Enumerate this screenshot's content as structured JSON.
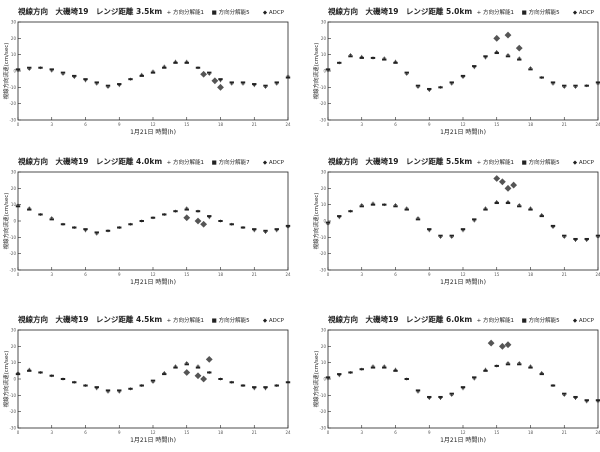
{
  "figure": {
    "background": "#ffffff",
    "ink": "#222222"
  },
  "chart_data": [
    {
      "type": "scatter",
      "title": "視線方向　大磯埼19　レンジ距離 3.5km",
      "xlabel": "1月21日 時間(h)",
      "ylabel": "視線方向流速(cm/sec)",
      "legend": [
        "方向分解能1",
        "方向分解能5",
        "ADCP"
      ],
      "legend_position": "top-right",
      "xlim": [
        0,
        24
      ],
      "ylim": [
        -30,
        30
      ],
      "grid": false,
      "series": [
        {
          "name": "方向分解能1",
          "x": [
            0,
            1,
            2,
            3,
            4,
            5,
            6,
            7,
            8,
            9,
            10,
            11,
            12,
            13,
            14,
            15,
            16,
            17,
            18,
            19,
            20,
            21,
            22,
            23,
            24
          ],
          "y": [
            0,
            1,
            2,
            0,
            -2,
            -4,
            -6,
            -8,
            -10,
            -9,
            -5,
            -2,
            0,
            3,
            6,
            6,
            2,
            -2,
            -6,
            -8,
            -8,
            -9,
            -10,
            -8,
            -3
          ]
        },
        {
          "name": "方向分解能5",
          "x": [
            0,
            1,
            2,
            3,
            4,
            5,
            6,
            7,
            8,
            9,
            10,
            11,
            12,
            13,
            14,
            15,
            16,
            17,
            18,
            19,
            20,
            21,
            22,
            23,
            24
          ],
          "y": [
            1,
            2,
            2,
            1,
            -1,
            -3,
            -5,
            -7,
            -9,
            -8,
            -5,
            -3,
            -1,
            2,
            5,
            5,
            2,
            -1,
            -5,
            -7,
            -7,
            -8,
            -9,
            -7,
            -4
          ]
        },
        {
          "name": "ADCP",
          "x": [
            16.5,
            17.5,
            18
          ],
          "y": [
            -2,
            -6,
            -10
          ]
        }
      ]
    },
    {
      "type": "scatter",
      "title": "視線方向　大磯埼19　レンジ距離 5.0km",
      "xlabel": "1月21日 時間(h)",
      "ylabel": "視線方向流速(cm/sec)",
      "legend": [
        "方向分解能1",
        "方向分解能5",
        "ADCP"
      ],
      "legend_position": "top-right",
      "xlim": [
        0,
        24
      ],
      "ylim": [
        -30,
        30
      ],
      "grid": false,
      "series": [
        {
          "name": "方向分解能1",
          "x": [
            0,
            1,
            2,
            3,
            4,
            5,
            6,
            7,
            8,
            9,
            10,
            11,
            12,
            13,
            14,
            15,
            16,
            17,
            18,
            19,
            20,
            21,
            22,
            23,
            24
          ],
          "y": [
            0,
            5,
            10,
            9,
            8,
            8,
            6,
            -2,
            -10,
            -12,
            -10,
            -8,
            -4,
            2,
            8,
            12,
            10,
            8,
            2,
            -4,
            -8,
            -10,
            -10,
            -9,
            -8
          ]
        },
        {
          "name": "方向分解能5",
          "x": [
            0,
            1,
            2,
            3,
            4,
            5,
            6,
            7,
            8,
            9,
            10,
            11,
            12,
            13,
            14,
            15,
            16,
            17,
            18,
            19,
            20,
            21,
            22,
            23,
            24
          ],
          "y": [
            1,
            5,
            9,
            8,
            8,
            7,
            5,
            -1,
            -9,
            -11,
            -10,
            -7,
            -3,
            3,
            9,
            11,
            9,
            7,
            1,
            -4,
            -7,
            -9,
            -9,
            -9,
            -7
          ]
        },
        {
          "name": "ADCP",
          "x": [
            15,
            16,
            17
          ],
          "y": [
            20,
            22,
            14
          ]
        }
      ]
    },
    {
      "type": "scatter",
      "title": "視線方向　大磯埼19　レンジ距離 4.0km",
      "xlabel": "1月21日 時間(h)",
      "ylabel": "視線方向流速(cm/sec)",
      "legend": [
        "方向分解能1",
        "方向分解能7",
        "ADCP"
      ],
      "legend_position": "top-right",
      "xlim": [
        0,
        24
      ],
      "ylim": [
        -30,
        30
      ],
      "grid": false,
      "series": [
        {
          "name": "方向分解能1",
          "x": [
            0,
            1,
            2,
            3,
            4,
            5,
            6,
            7,
            8,
            9,
            10,
            11,
            12,
            13,
            14,
            15,
            16,
            17,
            18,
            19,
            20,
            21,
            22,
            23,
            24
          ],
          "y": [
            10,
            8,
            4,
            2,
            -2,
            -4,
            -6,
            -8,
            -6,
            -4,
            -2,
            0,
            2,
            4,
            6,
            8,
            6,
            2,
            0,
            -2,
            -4,
            -6,
            -7,
            -6,
            -4
          ]
        },
        {
          "name": "方向分解能7",
          "x": [
            0,
            1,
            2,
            3,
            4,
            5,
            6,
            7,
            8,
            9,
            10,
            11,
            12,
            13,
            14,
            15,
            16,
            17,
            18,
            19,
            20,
            21,
            22,
            23,
            24
          ],
          "y": [
            9,
            7,
            4,
            1,
            -2,
            -4,
            -5,
            -7,
            -6,
            -4,
            -2,
            0,
            2,
            4,
            6,
            7,
            6,
            3,
            0,
            -2,
            -4,
            -5,
            -6,
            -5,
            -3
          ]
        },
        {
          "name": "ADCP",
          "x": [
            15,
            16,
            16.5
          ],
          "y": [
            2,
            0,
            -2
          ]
        }
      ]
    },
    {
      "type": "scatter",
      "title": "視線方向　大磯埼19　レンジ距離 5.5km",
      "xlabel": "1月21日 時間(h)",
      "ylabel": "視線方向流速(cm/sec)",
      "legend": [
        "方向分解能1",
        "方向分解能5",
        "ADCP"
      ],
      "legend_position": "top-right",
      "xlim": [
        0,
        24
      ],
      "ylim": [
        -30,
        30
      ],
      "grid": false,
      "series": [
        {
          "name": "方向分解能1",
          "x": [
            0,
            1,
            2,
            3,
            4,
            5,
            6,
            7,
            8,
            9,
            10,
            11,
            12,
            13,
            14,
            15,
            16,
            17,
            18,
            19,
            20,
            21,
            22,
            23,
            24
          ],
          "y": [
            -2,
            2,
            6,
            10,
            11,
            10,
            10,
            8,
            2,
            -6,
            -10,
            -10,
            -6,
            0,
            8,
            12,
            12,
            10,
            8,
            4,
            -4,
            -10,
            -12,
            -12,
            -10
          ]
        },
        {
          "name": "方向分解能5",
          "x": [
            0,
            1,
            2,
            3,
            4,
            5,
            6,
            7,
            8,
            9,
            10,
            11,
            12,
            13,
            14,
            15,
            16,
            17,
            18,
            19,
            20,
            21,
            22,
            23,
            24
          ],
          "y": [
            -1,
            3,
            6,
            9,
            10,
            10,
            9,
            7,
            1,
            -5,
            -9,
            -9,
            -5,
            1,
            7,
            11,
            11,
            9,
            7,
            3,
            -3,
            -9,
            -11,
            -11,
            -9
          ]
        },
        {
          "name": "ADCP",
          "x": [
            15,
            15.5,
            16,
            16.5
          ],
          "y": [
            26,
            24,
            20,
            22
          ]
        }
      ]
    },
    {
      "type": "scatter",
      "title": "視線方向　大磯埼19　レンジ距離 4.5km",
      "xlabel": "1月21日 時間(h)",
      "ylabel": "視線方向流速(cm/sec)",
      "legend": [
        "方向分解能1",
        "方向分解能5",
        "ADCP"
      ],
      "legend_position": "top-right",
      "xlim": [
        0,
        24
      ],
      "ylim": [
        -30,
        30
      ],
      "grid": false,
      "series": [
        {
          "name": "方向分解能1",
          "x": [
            0,
            1,
            2,
            3,
            4,
            5,
            6,
            7,
            8,
            9,
            10,
            11,
            12,
            13,
            14,
            15,
            16,
            17,
            18,
            19,
            20,
            21,
            22,
            23,
            24
          ],
          "y": [
            4,
            6,
            4,
            2,
            0,
            -2,
            -4,
            -6,
            -8,
            -8,
            -6,
            -4,
            -2,
            4,
            8,
            10,
            8,
            4,
            0,
            -2,
            -4,
            -6,
            -6,
            -4,
            -2
          ]
        },
        {
          "name": "方向分解能5",
          "x": [
            0,
            1,
            2,
            3,
            4,
            5,
            6,
            7,
            8,
            9,
            10,
            11,
            12,
            13,
            14,
            15,
            16,
            17,
            18,
            19,
            20,
            21,
            22,
            23,
            24
          ],
          "y": [
            3,
            5,
            4,
            2,
            0,
            -2,
            -4,
            -5,
            -7,
            -7,
            -6,
            -4,
            -1,
            3,
            7,
            9,
            7,
            4,
            0,
            -2,
            -4,
            -5,
            -5,
            -4,
            -2
          ]
        },
        {
          "name": "ADCP",
          "x": [
            15,
            16,
            16.5,
            17
          ],
          "y": [
            4,
            2,
            0,
            12
          ]
        }
      ]
    },
    {
      "type": "scatter",
      "title": "視線方向　大磯埼19　レンジ距離 6.0km",
      "xlabel": "1月21日 時間(h)",
      "ylabel": "視線方向流速(cm/sec)",
      "legend": [
        "方向分解能1",
        "方向分解能5",
        "ADCP"
      ],
      "legend_position": "top-right",
      "xlim": [
        0,
        24
      ],
      "ylim": [
        -30,
        30
      ],
      "grid": false,
      "series": [
        {
          "name": "方向分解能1",
          "x": [
            0,
            1,
            2,
            3,
            4,
            5,
            6,
            7,
            8,
            9,
            10,
            11,
            12,
            13,
            14,
            15,
            16,
            17,
            18,
            19,
            20,
            21,
            22,
            23,
            24
          ],
          "y": [
            0,
            2,
            4,
            6,
            8,
            8,
            6,
            0,
            -8,
            -12,
            -12,
            -10,
            -6,
            0,
            6,
            8,
            10,
            10,
            8,
            4,
            -4,
            -10,
            -12,
            -14,
            -14
          ]
        },
        {
          "name": "方向分解能5",
          "x": [
            0,
            1,
            2,
            3,
            4,
            5,
            6,
            7,
            8,
            9,
            10,
            11,
            12,
            13,
            14,
            15,
            16,
            17,
            18,
            19,
            20,
            21,
            22,
            23,
            24
          ],
          "y": [
            1,
            3,
            4,
            6,
            7,
            7,
            5,
            0,
            -7,
            -11,
            -11,
            -9,
            -5,
            1,
            5,
            8,
            9,
            9,
            7,
            3,
            -4,
            -9,
            -11,
            -13,
            -13
          ]
        },
        {
          "name": "ADCP",
          "x": [
            14.5,
            15.5,
            16
          ],
          "y": [
            22,
            20,
            21
          ]
        }
      ]
    }
  ]
}
